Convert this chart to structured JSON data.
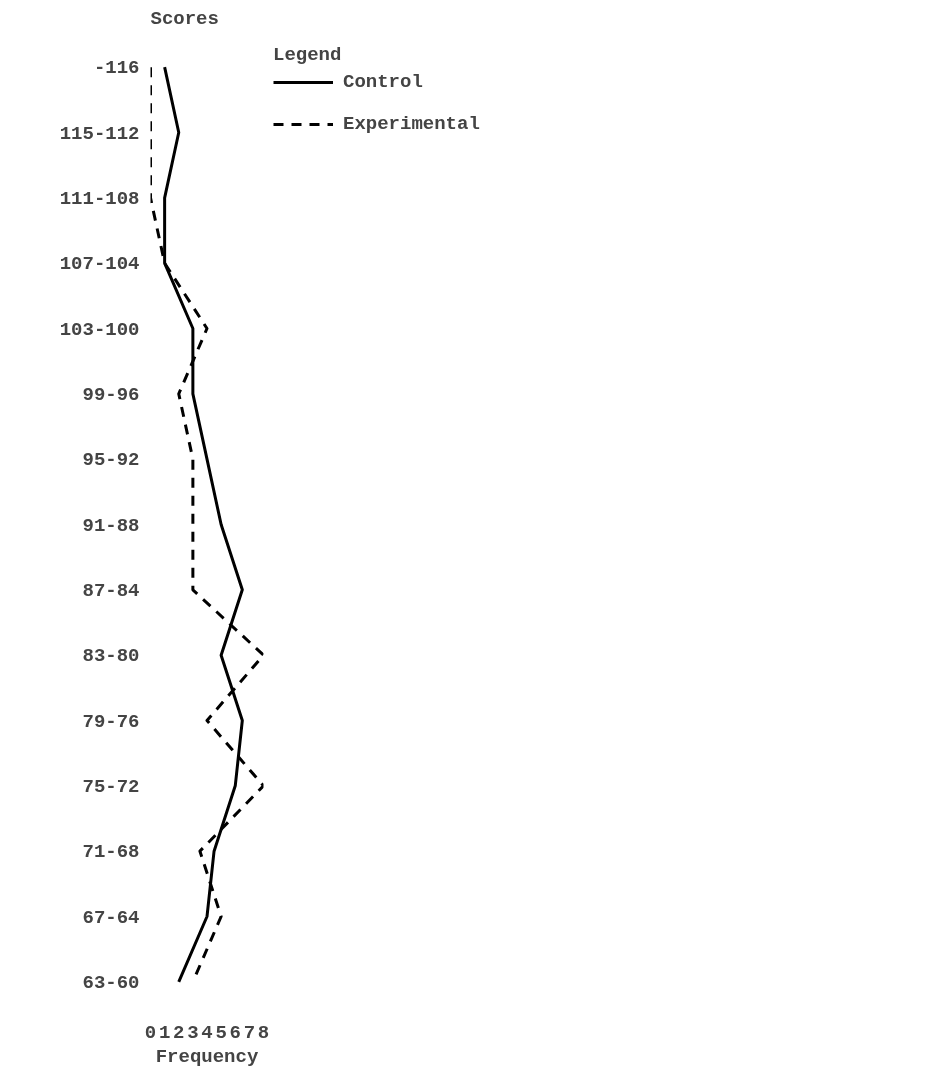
{
  "chart_data": {
    "type": "line",
    "orientation": "horizontal",
    "ylabel": "Scores",
    "xlabel": "Frequency",
    "legend_title": "Legend",
    "categories": [
      "-116",
      "115-112",
      "111-108",
      "107-104",
      "103-100",
      "99-96",
      "95-92",
      "91-88",
      "87-84",
      "83-80",
      "79-76",
      "75-72",
      "71-68",
      "67-64",
      "63-60"
    ],
    "xlim": [
      0,
      8
    ],
    "xticks": [
      0,
      1,
      2,
      3,
      4,
      5,
      6,
      7,
      8
    ],
    "grid": false,
    "legend": "right",
    "marker": "none",
    "series": [
      {
        "name": "Control",
        "color": "#000000",
        "line_style": "solid",
        "values": [
          1,
          2,
          1,
          1,
          3,
          3,
          4,
          5,
          6.5,
          5,
          6.5,
          6,
          4.5,
          4,
          2
        ]
      },
      {
        "name": "Experimental",
        "color": "#000000",
        "line_style": "dashed",
        "values": [
          0,
          0,
          0,
          1,
          4,
          2,
          3,
          3,
          3,
          8,
          4,
          8,
          3.5,
          5,
          3
        ]
      }
    ]
  }
}
